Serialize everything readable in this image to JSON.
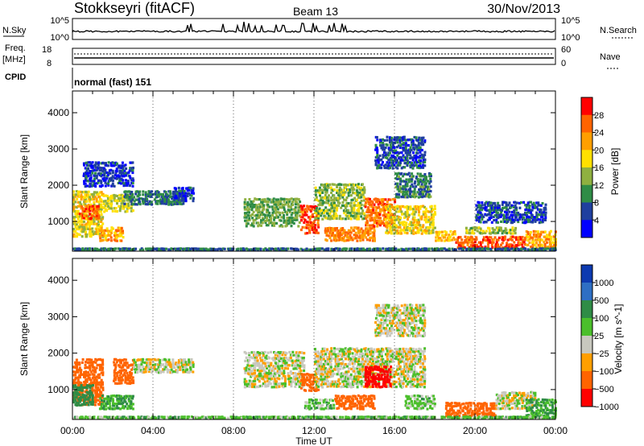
{
  "header": {
    "station": "Stokkseyri (fitACF)",
    "beam": "Beam 13",
    "date": "30/Nov/2013"
  },
  "nsky_panel": {
    "left_label": "N.Sky",
    "left_ticks": [
      "10^5",
      "10^0"
    ],
    "right_ticks": [
      "10^5",
      "10^0"
    ],
    "right_label": "N.Search"
  },
  "freq_panel": {
    "label_line1": "Freq.",
    "label_line2": "[MHz]",
    "left_ticks": [
      "18",
      "8"
    ],
    "right_ticks": [
      "60",
      "0"
    ],
    "right_label": "Nave"
  },
  "cpid_panel": {
    "label": "CPID",
    "program": "normal (fast) 151"
  },
  "x_axis": {
    "ticks": [
      "00:00",
      "04:00",
      "08:00",
      "12:00",
      "16:00",
      "20:00",
      "00:00"
    ],
    "label": "Time UT"
  },
  "chart_data": [
    {
      "type": "heatmap",
      "variable": "power",
      "ylabel": "Slant Range [km]",
      "yticks": [
        "1000",
        "2000",
        "3000",
        "4000"
      ],
      "ylim": [
        180,
        4600
      ],
      "xlim_hours": [
        0,
        24
      ],
      "colorbar": {
        "label": "Power [dB]",
        "ticks": [
          "28",
          "24",
          "20",
          "16",
          "12",
          "8",
          "4"
        ],
        "colors": [
          "#ff0000",
          "#ff6400",
          "#ff9f00",
          "#ffe000",
          "#8fb040",
          "#2f8c46",
          "#1f3f9f",
          "#0000ff"
        ]
      },
      "regions": [
        {
          "t": [
            0.0,
            1.5
          ],
          "r": [
            600,
            1900
          ],
          "v": 18
        },
        {
          "t": [
            0.3,
            1.3
          ],
          "r": [
            1100,
            1500
          ],
          "v": 26
        },
        {
          "t": [
            1.3,
            2.5
          ],
          "r": [
            500,
            900
          ],
          "v": 22
        },
        {
          "t": [
            1.5,
            3.0
          ],
          "r": [
            1300,
            1800
          ],
          "v": 16
        },
        {
          "t": [
            2.5,
            5.5
          ],
          "r": [
            1500,
            1900
          ],
          "v": 8
        },
        {
          "t": [
            5.0,
            6.0
          ],
          "r": [
            1600,
            2000
          ],
          "v": 6
        },
        {
          "t": [
            0.5,
            3.0
          ],
          "r": [
            2000,
            2700
          ],
          "v": 5
        },
        {
          "t": [
            8.5,
            11.3
          ],
          "r": [
            900,
            1700
          ],
          "v": 12
        },
        {
          "t": [
            11.3,
            12.2
          ],
          "r": [
            700,
            1500
          ],
          "v": 27
        },
        {
          "t": [
            12.0,
            14.5
          ],
          "r": [
            1100,
            2100
          ],
          "v": 14
        },
        {
          "t": [
            12.5,
            15.0
          ],
          "r": [
            500,
            900
          ],
          "v": 24
        },
        {
          "t": [
            14.5,
            16.0
          ],
          "r": [
            900,
            1700
          ],
          "v": 25
        },
        {
          "t": [
            15.5,
            18.0
          ],
          "r": [
            700,
            1500
          ],
          "v": 18
        },
        {
          "t": [
            16.0,
            17.8
          ],
          "r": [
            1700,
            2400
          ],
          "v": 9
        },
        {
          "t": [
            15.0,
            17.5
          ],
          "r": [
            2500,
            3400
          ],
          "v": 6
        },
        {
          "t": [
            18.0,
            19.0
          ],
          "r": [
            500,
            800
          ],
          "v": 20
        },
        {
          "t": [
            19.0,
            22.5
          ],
          "r": [
            300,
            650
          ],
          "v": 27
        },
        {
          "t": [
            19.5,
            22.0
          ],
          "r": [
            700,
            900
          ],
          "v": 14
        },
        {
          "t": [
            22.5,
            24.0
          ],
          "r": [
            300,
            800
          ],
          "v": 22
        },
        {
          "t": [
            20.0,
            23.5
          ],
          "r": [
            1000,
            1600
          ],
          "v": 6
        },
        {
          "t": [
            0.0,
            24.0
          ],
          "r": [
            250,
            300
          ],
          "v": 8
        }
      ]
    },
    {
      "type": "heatmap",
      "variable": "velocity",
      "ylabel": "Slant Range [km]",
      "yticks": [
        "1000",
        "2000",
        "3000",
        "4000"
      ],
      "ylim": [
        180,
        4600
      ],
      "xlim_hours": [
        0,
        24
      ],
      "colorbar": {
        "label": "Velocity [m s^-1]",
        "ticks": [
          "1000",
          "500",
          "100",
          "25",
          "−25",
          "−100",
          "−500",
          "−1000"
        ],
        "colors": [
          "#0d3ab0",
          "#2e6fc4",
          "#2f8c46",
          "#4bbf2b",
          "#c8c8be",
          "#ff9f00",
          "#ff6400",
          "#ff0000"
        ]
      },
      "regions": [
        {
          "t": [
            0.0,
            1.5
          ],
          "r": [
            600,
            1900
          ],
          "v": -300
        },
        {
          "t": [
            0.0,
            1.0
          ],
          "r": [
            600,
            1200
          ],
          "v": 300
        },
        {
          "t": [
            1.3,
            3.0
          ],
          "r": [
            500,
            900
          ],
          "v": 100
        },
        {
          "t": [
            2.0,
            3.0
          ],
          "r": [
            1200,
            1900
          ],
          "v": -200
        },
        {
          "t": [
            3.0,
            6.0
          ],
          "r": [
            1500,
            1900
          ],
          "v": 0
        },
        {
          "t": [
            8.5,
            11.5
          ],
          "r": [
            1100,
            2100
          ],
          "v": 0
        },
        {
          "t": [
            11.3,
            12.2
          ],
          "r": [
            1000,
            1500
          ],
          "v": -400
        },
        {
          "t": [
            11.5,
            13.0
          ],
          "r": [
            500,
            800
          ],
          "v": 60
        },
        {
          "t": [
            12.0,
            17.5
          ],
          "r": [
            1100,
            2200
          ],
          "v": 0
        },
        {
          "t": [
            14.5,
            15.8
          ],
          "r": [
            1100,
            1700
          ],
          "v": -1000
        },
        {
          "t": [
            13.0,
            15.0
          ],
          "r": [
            500,
            900
          ],
          "v": -300
        },
        {
          "t": [
            16.5,
            18.0
          ],
          "r": [
            500,
            900
          ],
          "v": 60
        },
        {
          "t": [
            15.0,
            17.5
          ],
          "r": [
            2500,
            3400
          ],
          "v": 0
        },
        {
          "t": [
            18.5,
            21.0
          ],
          "r": [
            300,
            700
          ],
          "v": -300
        },
        {
          "t": [
            21.0,
            23.0
          ],
          "r": [
            500,
            1000
          ],
          "v": 0
        },
        {
          "t": [
            22.5,
            24.0
          ],
          "r": [
            300,
            800
          ],
          "v": 100
        },
        {
          "t": [
            0.0,
            24.0
          ],
          "r": [
            250,
            300
          ],
          "v": 60
        }
      ]
    }
  ],
  "colors": {
    "axis": "#000000",
    "no_data": "#ffffff"
  }
}
